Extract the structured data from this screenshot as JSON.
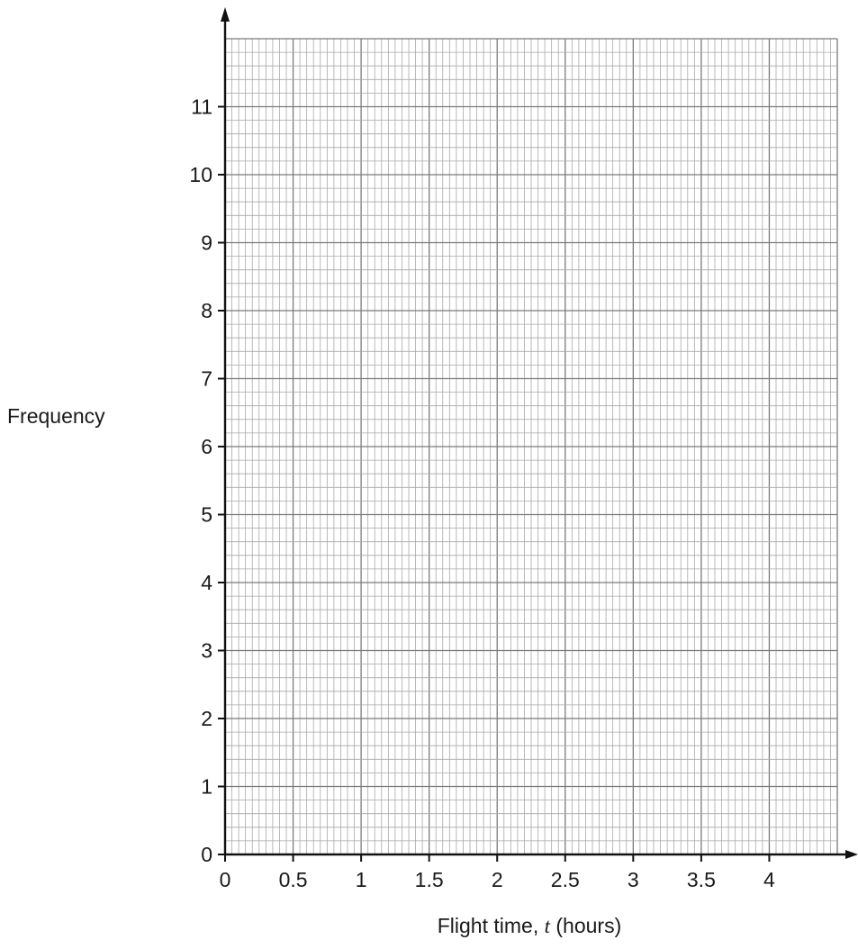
{
  "chart_data": {
    "type": "bar",
    "xlabel_prefix": "Flight time, ",
    "xlabel_variable": "t",
    "xlabel_suffix": " (hours)",
    "ylabel": "Frequency",
    "xlim": [
      0,
      4.5
    ],
    "ylim": [
      0,
      12
    ],
    "x_ticks": [
      "0",
      "0.5",
      "1",
      "1.5",
      "2",
      "2.5",
      "3",
      "3.5",
      "4"
    ],
    "y_ticks": [
      "0",
      "1",
      "2",
      "3",
      "4",
      "5",
      "6",
      "7",
      "8",
      "9",
      "10",
      "11"
    ],
    "grid": true,
    "categories": [],
    "values": []
  }
}
